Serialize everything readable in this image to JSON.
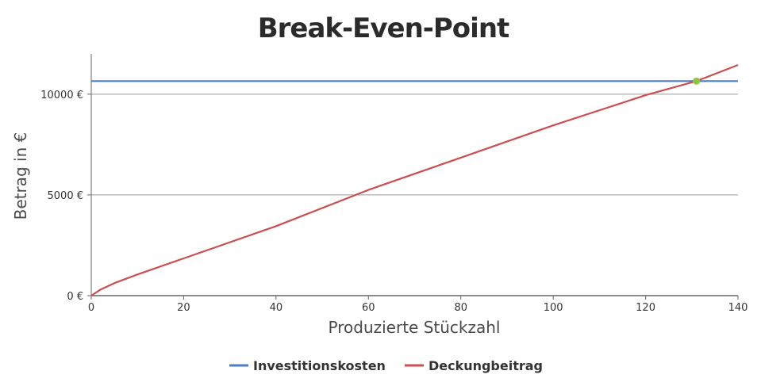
{
  "chart_data": {
    "type": "line",
    "title": "Break-Even-Point",
    "xlabel": "Produzierte Stückzahl",
    "ylabel": "Betrag in €",
    "xlim": [
      0,
      140
    ],
    "ylim": [
      0,
      12000
    ],
    "x_ticks": [
      0,
      20,
      40,
      60,
      80,
      100,
      120,
      140
    ],
    "x_tick_labels": [
      "0",
      "20",
      "40",
      "60",
      "80",
      "100",
      "120",
      "140"
    ],
    "y_ticks": [
      0,
      5000,
      10000
    ],
    "y_tick_labels": [
      "0 €",
      "5000 €",
      "10000 €"
    ],
    "grid": "horizontal",
    "legend_position": "bottom",
    "series": [
      {
        "name": "Investitionskosten",
        "color": "#4a7fcf",
        "x": [
          0,
          140
        ],
        "y": [
          10650,
          10650
        ]
      },
      {
        "name": "Deckungbeitrag",
        "color": "#cc4f4f",
        "x": [
          0,
          2,
          5,
          10,
          20,
          40,
          60,
          80,
          100,
          120,
          131,
          140
        ],
        "y": [
          0,
          300,
          620,
          1050,
          1850,
          3450,
          5250,
          6850,
          8450,
          9950,
          10650,
          11450
        ]
      }
    ],
    "break_even_point": {
      "x": 131,
      "y": 10650,
      "color": "#8dc63f"
    }
  }
}
